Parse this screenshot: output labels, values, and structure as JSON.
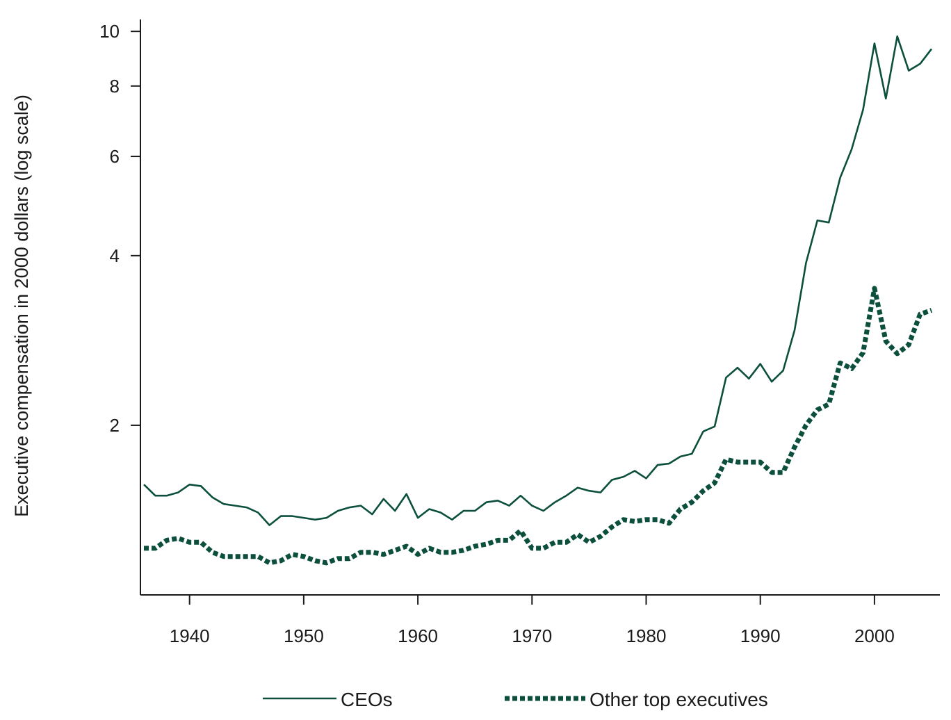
{
  "chart_data": {
    "type": "line",
    "title": "",
    "xlabel": "",
    "ylabel": "Executive compensation in 2000 dollars (log scale)",
    "y_scale": "log",
    "xlim": [
      1936,
      2005
    ],
    "ylim": [
      1.0,
      10.5
    ],
    "x_ticks": [
      1940,
      1950,
      1960,
      1970,
      1980,
      1990,
      2000
    ],
    "y_ticks": [
      2,
      4,
      6,
      8,
      10
    ],
    "grid": false,
    "legend_position": "bottom",
    "color": "#0b4f3c",
    "series": [
      {
        "name": "CEOs",
        "style": "solid",
        "x": [
          1936,
          1937,
          1938,
          1939,
          1940,
          1941,
          1942,
          1943,
          1944,
          1945,
          1946,
          1947,
          1948,
          1949,
          1950,
          1951,
          1952,
          1953,
          1954,
          1955,
          1956,
          1957,
          1958,
          1959,
          1960,
          1961,
          1962,
          1963,
          1964,
          1965,
          1966,
          1967,
          1968,
          1969,
          1970,
          1971,
          1972,
          1973,
          1974,
          1975,
          1976,
          1977,
          1978,
          1979,
          1980,
          1981,
          1982,
          1983,
          1984,
          1985,
          1986,
          1987,
          1988,
          1989,
          1990,
          1991,
          1992,
          1993,
          1994,
          1995,
          1996,
          1997,
          1998,
          1999,
          2000,
          2001,
          2002,
          2003,
          2004,
          2005
        ],
        "values": [
          1.57,
          1.5,
          1.5,
          1.52,
          1.57,
          1.56,
          1.49,
          1.45,
          1.44,
          1.43,
          1.4,
          1.33,
          1.38,
          1.38,
          1.37,
          1.36,
          1.37,
          1.41,
          1.43,
          1.44,
          1.39,
          1.48,
          1.41,
          1.51,
          1.37,
          1.42,
          1.4,
          1.36,
          1.41,
          1.41,
          1.46,
          1.47,
          1.44,
          1.5,
          1.44,
          1.41,
          1.46,
          1.5,
          1.55,
          1.53,
          1.52,
          1.6,
          1.62,
          1.66,
          1.61,
          1.7,
          1.71,
          1.76,
          1.78,
          1.95,
          1.99,
          2.43,
          2.53,
          2.42,
          2.57,
          2.39,
          2.5,
          2.95,
          3.88,
          4.62,
          4.58,
          5.5,
          6.18,
          7.26,
          9.52,
          7.6,
          9.8,
          8.52,
          8.76,
          9.31
        ]
      },
      {
        "name": "Other top executives",
        "style": "dotted",
        "x": [
          1936,
          1937,
          1938,
          1939,
          1940,
          1941,
          1942,
          1943,
          1944,
          1945,
          1946,
          1947,
          1948,
          1949,
          1950,
          1951,
          1952,
          1953,
          1954,
          1955,
          1956,
          1957,
          1958,
          1959,
          1960,
          1961,
          1962,
          1963,
          1964,
          1965,
          1966,
          1967,
          1968,
          1969,
          1970,
          1971,
          1972,
          1973,
          1974,
          1975,
          1976,
          1977,
          1978,
          1979,
          1980,
          1981,
          1982,
          1983,
          1984,
          1985,
          1986,
          1987,
          1988,
          1989,
          1990,
          1991,
          1992,
          1993,
          1994,
          1995,
          1996,
          1997,
          1998,
          1999,
          2000,
          2001,
          2002,
          2003,
          2004,
          2005
        ],
        "values": [
          1.21,
          1.21,
          1.25,
          1.26,
          1.24,
          1.24,
          1.19,
          1.17,
          1.17,
          1.17,
          1.17,
          1.14,
          1.15,
          1.18,
          1.17,
          1.15,
          1.14,
          1.16,
          1.16,
          1.19,
          1.19,
          1.18,
          1.2,
          1.22,
          1.18,
          1.21,
          1.19,
          1.19,
          1.2,
          1.22,
          1.23,
          1.25,
          1.25,
          1.3,
          1.21,
          1.21,
          1.24,
          1.24,
          1.28,
          1.24,
          1.27,
          1.32,
          1.36,
          1.35,
          1.36,
          1.36,
          1.34,
          1.42,
          1.46,
          1.53,
          1.58,
          1.74,
          1.72,
          1.72,
          1.72,
          1.65,
          1.65,
          1.83,
          2.0,
          2.13,
          2.18,
          2.58,
          2.52,
          2.69,
          3.5,
          2.82,
          2.68,
          2.78,
          3.15,
          3.2
        ]
      }
    ]
  }
}
